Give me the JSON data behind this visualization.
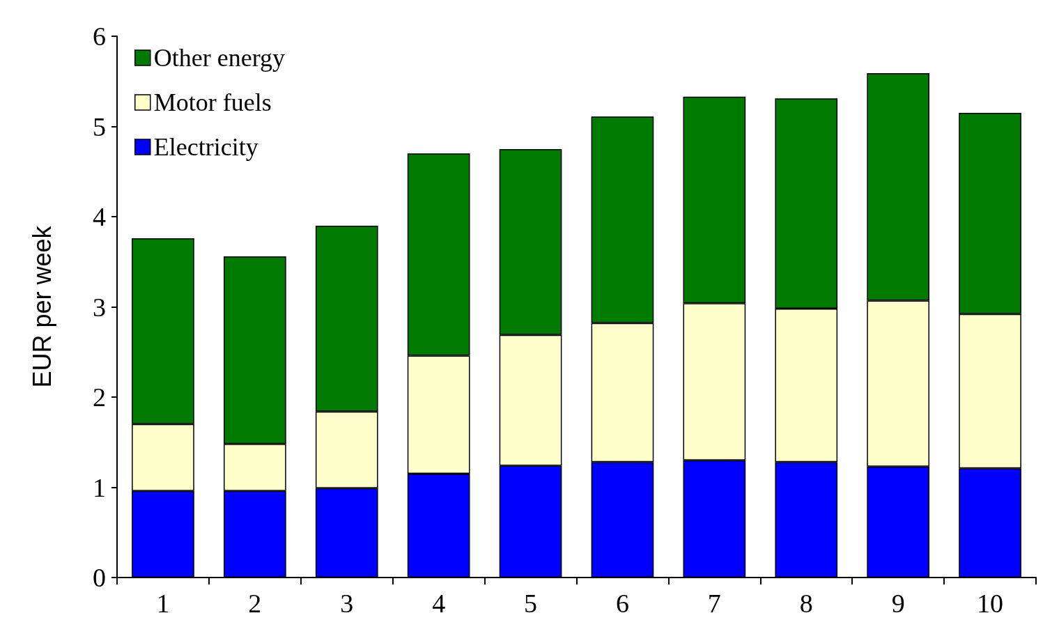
{
  "chart_data": {
    "type": "bar",
    "stacked": true,
    "ylabel": "EUR per week",
    "categories": [
      "1",
      "2",
      "3",
      "4",
      "5",
      "6",
      "7",
      "8",
      "9",
      "10"
    ],
    "series": [
      {
        "name": "Electricity",
        "color": "#0000ff",
        "values": [
          0.96,
          0.96,
          0.99,
          1.15,
          1.24,
          1.28,
          1.3,
          1.28,
          1.23,
          1.21
        ]
      },
      {
        "name": "Motor fuels",
        "color": "#ffffcc",
        "values": [
          0.74,
          0.52,
          0.85,
          1.31,
          1.45,
          1.54,
          1.74,
          1.7,
          1.84,
          1.71
        ]
      },
      {
        "name": "Other energy",
        "color": "#007a00",
        "values": [
          2.06,
          2.08,
          2.06,
          2.24,
          2.06,
          2.29,
          2.29,
          2.33,
          2.52,
          2.23
        ]
      }
    ],
    "ylim": [
      0,
      6
    ],
    "yticks": [
      0,
      1,
      2,
      3,
      4,
      5,
      6
    ],
    "grid": false,
    "legend": "top left"
  }
}
